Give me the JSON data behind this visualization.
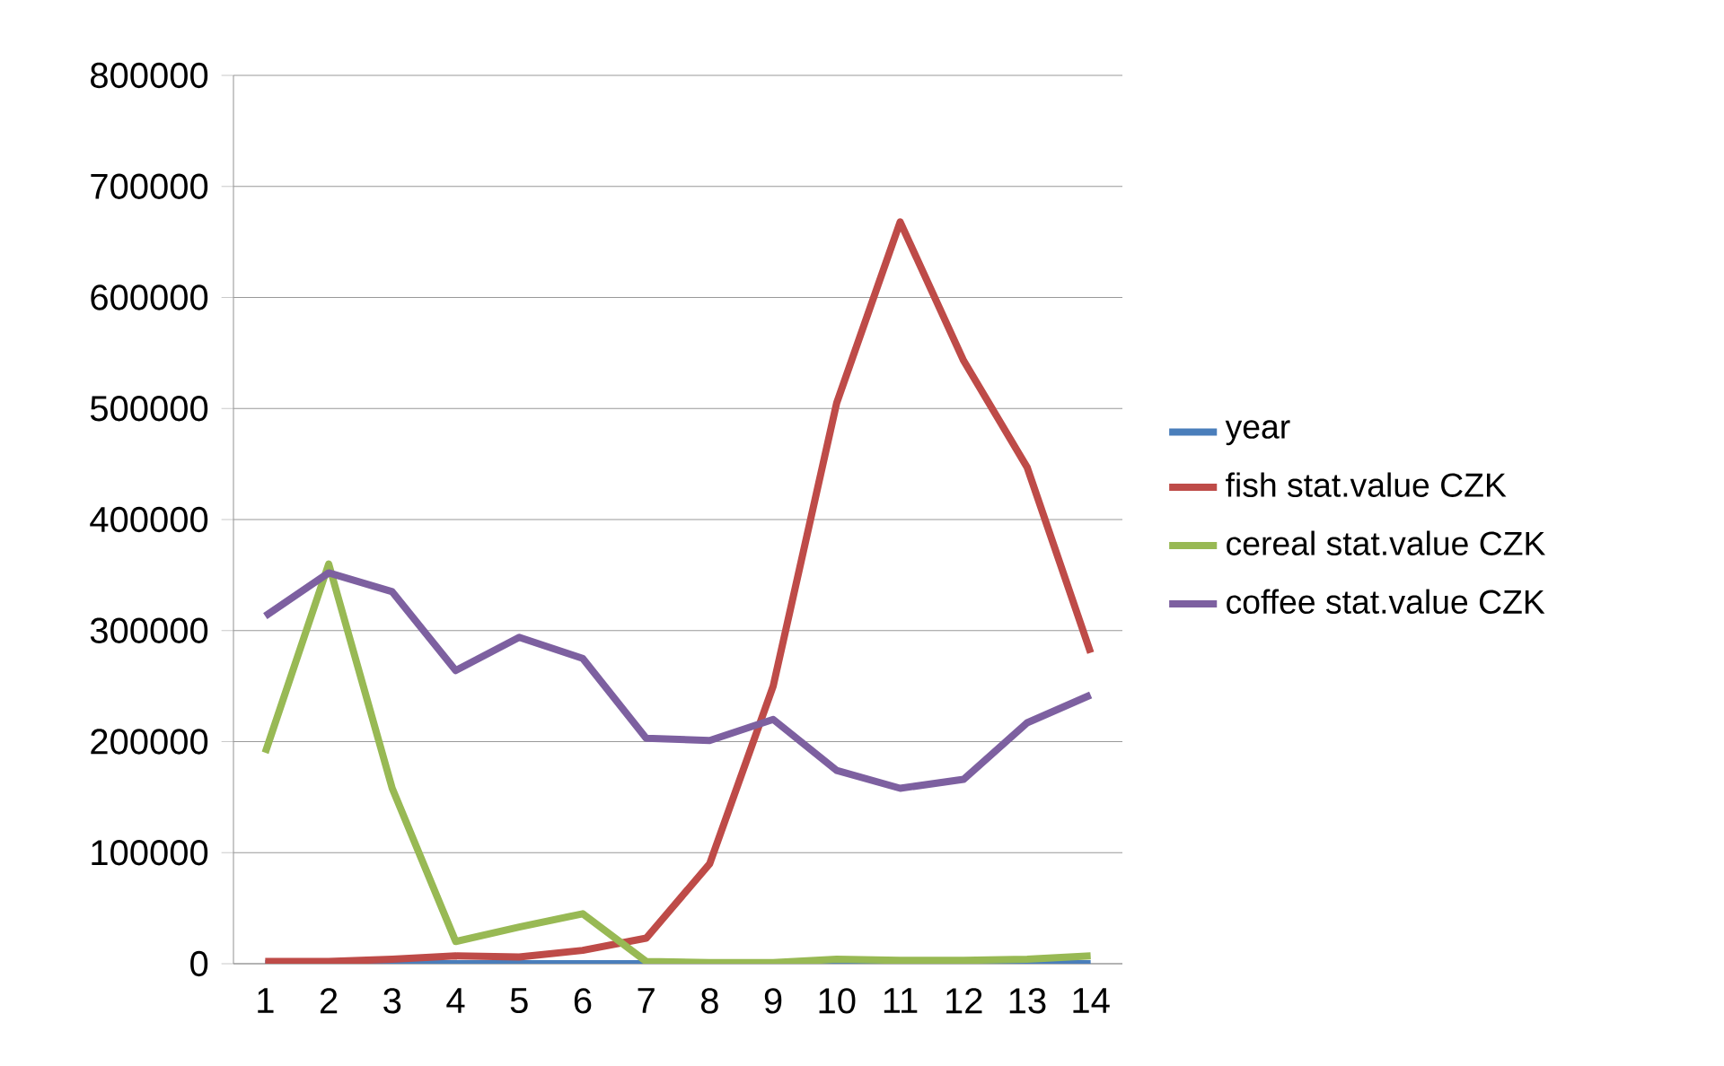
{
  "chart_data": {
    "type": "line",
    "categories": [
      "1",
      "2",
      "3",
      "4",
      "5",
      "6",
      "7",
      "8",
      "9",
      "10",
      "11",
      "12",
      "13",
      "14"
    ],
    "ylim": [
      0,
      800000
    ],
    "yticks": [
      0,
      100000,
      200000,
      300000,
      400000,
      500000,
      600000,
      700000,
      800000
    ],
    "grid": "y",
    "legend": "right",
    "marker": "none",
    "line_style": "solid",
    "series": [
      {
        "name": "year",
        "color": "#4a7ebb",
        "values": [
          0,
          0,
          0,
          0,
          0,
          0,
          0,
          0,
          0,
          0,
          0,
          0,
          0,
          0
        ]
      },
      {
        "name": "fish stat.value CZK",
        "color": "#be4b48",
        "values": [
          2000,
          2000,
          4000,
          7000,
          6000,
          12000,
          23000,
          90000,
          250000,
          505000,
          668000,
          543000,
          447000,
          280000
        ]
      },
      {
        "name": "cereal stat.value CZK",
        "color": "#98b954",
        "values": [
          190000,
          360000,
          158000,
          20000,
          33000,
          45000,
          2000,
          1000,
          1000,
          4000,
          3000,
          3000,
          4000,
          7000
        ]
      },
      {
        "name": "coffee stat.value CZK",
        "color": "#7d60a0",
        "values": [
          313000,
          352000,
          335000,
          264000,
          294000,
          275000,
          203000,
          201000,
          220000,
          174000,
          158000,
          166000,
          217000,
          242000
        ]
      }
    ]
  }
}
